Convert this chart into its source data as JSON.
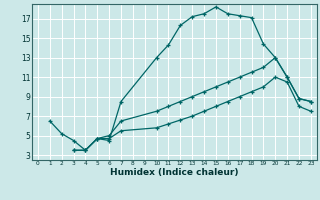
{
  "xlabel": "Humidex (Indice chaleur)",
  "bg_color": "#cce8e8",
  "line_color": "#006666",
  "grid_color": "#ffffff",
  "xlim": [
    -0.5,
    23.5
  ],
  "ylim": [
    2.5,
    18.5
  ],
  "xticks": [
    0,
    1,
    2,
    3,
    4,
    5,
    6,
    7,
    8,
    9,
    10,
    11,
    12,
    13,
    14,
    15,
    16,
    17,
    18,
    19,
    20,
    21,
    22,
    23
  ],
  "yticks": [
    3,
    5,
    7,
    9,
    11,
    13,
    15,
    17
  ],
  "line1_x": [
    1,
    2,
    3,
    4,
    5,
    6,
    7,
    10,
    11,
    12,
    13,
    14,
    15,
    16,
    17,
    18,
    19,
    20,
    21,
    22,
    23
  ],
  "line1_y": [
    6.5,
    5.2,
    4.5,
    3.5,
    4.7,
    4.5,
    8.5,
    13.0,
    14.3,
    16.3,
    17.2,
    17.5,
    18.2,
    17.5,
    17.3,
    17.1,
    14.4,
    13.0,
    11.0,
    8.8,
    8.5
  ],
  "line2_x": [
    3,
    4,
    5,
    6,
    7,
    10,
    11,
    12,
    13,
    14,
    15,
    16,
    17,
    18,
    19,
    20,
    21,
    22,
    23
  ],
  "line2_y": [
    3.5,
    3.5,
    4.7,
    5.0,
    6.5,
    7.5,
    8.0,
    8.5,
    9.0,
    9.5,
    10.0,
    10.5,
    11.0,
    11.5,
    12.0,
    13.0,
    11.0,
    8.8,
    8.5
  ],
  "line3_x": [
    3,
    4,
    5,
    6,
    7,
    10,
    11,
    12,
    13,
    14,
    15,
    16,
    17,
    18,
    19,
    20,
    21,
    22,
    23
  ],
  "line3_y": [
    3.5,
    3.5,
    4.7,
    4.7,
    5.5,
    5.8,
    6.2,
    6.6,
    7.0,
    7.5,
    8.0,
    8.5,
    9.0,
    9.5,
    10.0,
    11.0,
    10.5,
    8.0,
    7.5
  ]
}
